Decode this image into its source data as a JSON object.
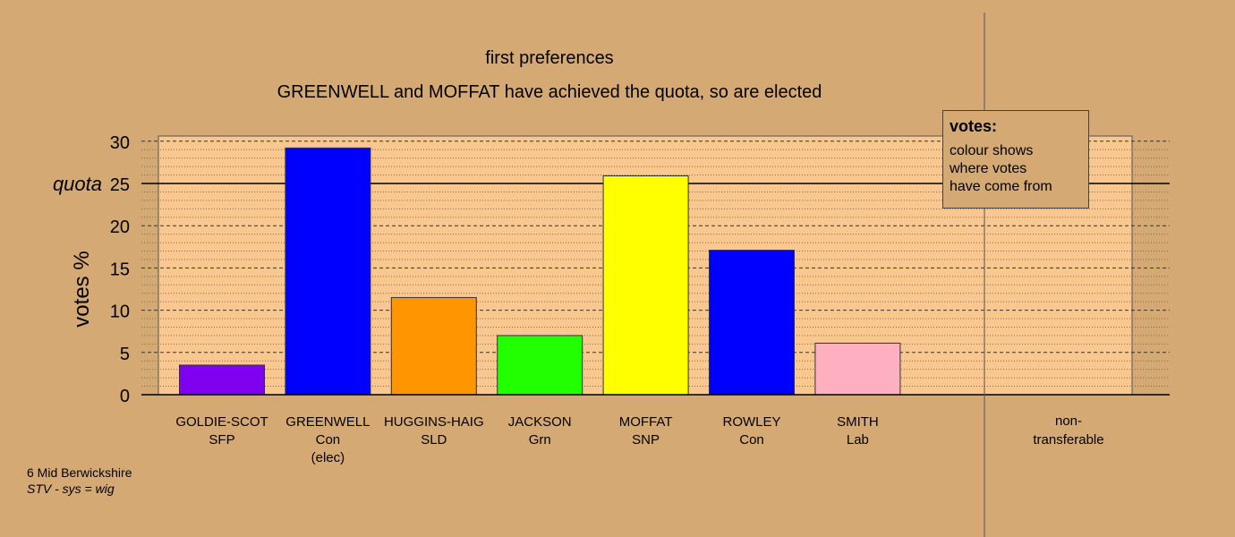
{
  "chart_data": {
    "type": "bar",
    "title": "first preferences",
    "subtitle": "GREENWELL and MOFFAT have achieved the quota, so are elected",
    "ylabel": "votes %",
    "xlabel": "",
    "ylim": [
      0,
      30
    ],
    "yticks": [
      "0",
      "5",
      "10",
      "15",
      "20",
      "25",
      "30"
    ],
    "quota": {
      "label": "quota",
      "value": 25
    },
    "grid": true,
    "categories": [
      {
        "name": "GOLDIE-SCOT",
        "party": "SFP",
        "note": ""
      },
      {
        "name": "GREENWELL",
        "party": "Con",
        "note": "(elec)"
      },
      {
        "name": "HUGGINS-HAIG",
        "party": "SLD",
        "note": ""
      },
      {
        "name": "JACKSON",
        "party": "Grn",
        "note": ""
      },
      {
        "name": "MOFFAT",
        "party": "SNP",
        "note": ""
      },
      {
        "name": "ROWLEY",
        "party": "Con",
        "note": ""
      },
      {
        "name": "SMITH",
        "party": "Lab",
        "note": ""
      }
    ],
    "values": [
      3.5,
      29.2,
      11.5,
      7.0,
      25.9,
      17.1,
      6.1
    ],
    "colors": [
      "#8000f0",
      "#0000ff",
      "#ff9500",
      "#22ff00",
      "#ffff00",
      "#0000ff",
      "#ffb0c0"
    ],
    "nontransferable": {
      "label_line1": "non-",
      "label_line2": "transferable",
      "value": 0
    },
    "legend": {
      "title": "votes:",
      "lines": [
        "colour shows",
        "where votes",
        "have come from"
      ],
      "position": "top-right"
    },
    "colors_meta": {
      "background": "#d4a973",
      "plot_background": "#f8c890"
    }
  },
  "footer": {
    "ward": "6 Mid Berwickshire",
    "system": "STV - sys = wig"
  }
}
